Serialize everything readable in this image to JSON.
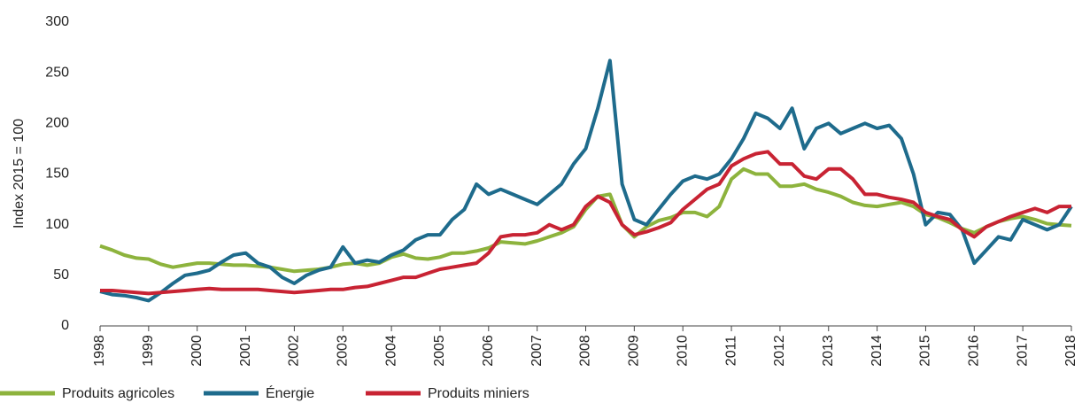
{
  "chart_data": {
    "type": "line",
    "y_label": "Index 2015 = 100",
    "x": [
      1998,
      1998.25,
      1998.5,
      1998.75,
      1999,
      1999.25,
      1999.5,
      1999.75,
      2000,
      2000.25,
      2000.5,
      2000.75,
      2001,
      2001.25,
      2001.5,
      2001.75,
      2002,
      2002.25,
      2002.5,
      2002.75,
      2003,
      2003.25,
      2003.5,
      2003.75,
      2004,
      2004.25,
      2004.5,
      2004.75,
      2005,
      2005.25,
      2005.5,
      2005.75,
      2006,
      2006.25,
      2006.5,
      2006.75,
      2007,
      2007.25,
      2007.5,
      2007.75,
      2008,
      2008.25,
      2008.5,
      2008.75,
      2009,
      2009.25,
      2009.5,
      2009.75,
      2010,
      2010.25,
      2010.5,
      2010.75,
      2011,
      2011.25,
      2011.5,
      2011.75,
      2012,
      2012.25,
      2012.5,
      2012.75,
      2013,
      2013.25,
      2013.5,
      2013.75,
      2014,
      2014.25,
      2014.5,
      2014.75,
      2015,
      2015.25,
      2015.5,
      2015.75,
      2016,
      2016.25,
      2016.5,
      2016.75,
      2017,
      2017.25,
      2017.5,
      2017.75,
      2018
    ],
    "series": [
      {
        "name": "Produits agricoles",
        "color": "#8db33d",
        "values": [
          79,
          75,
          70,
          67,
          66,
          61,
          58,
          60,
          62,
          62,
          61,
          60,
          60,
          59,
          58,
          56,
          54,
          55,
          56,
          58,
          61,
          62,
          60,
          62,
          68,
          71,
          67,
          66,
          68,
          72,
          72,
          74,
          77,
          83,
          82,
          81,
          84,
          88,
          92,
          98,
          115,
          128,
          130,
          100,
          88,
          98,
          104,
          107,
          112,
          112,
          108,
          118,
          145,
          155,
          150,
          150,
          138,
          138,
          140,
          135,
          132,
          128,
          122,
          119,
          118,
          120,
          122,
          118,
          110,
          107,
          102,
          96,
          92,
          98,
          103,
          106,
          108,
          105,
          101,
          100,
          99
        ]
      },
      {
        "name": "Énergie",
        "color": "#1e6b8c",
        "values": [
          34,
          31,
          30,
          28,
          25,
          33,
          42,
          50,
          52,
          55,
          63,
          70,
          72,
          62,
          58,
          48,
          42,
          50,
          55,
          58,
          78,
          62,
          65,
          63,
          70,
          75,
          85,
          90,
          90,
          105,
          115,
          140,
          130,
          135,
          130,
          125,
          120,
          130,
          140,
          160,
          175,
          215,
          262,
          140,
          105,
          100,
          115,
          130,
          143,
          148,
          145,
          150,
          165,
          185,
          210,
          205,
          195,
          215,
          175,
          195,
          200,
          190,
          195,
          200,
          195,
          198,
          185,
          150,
          100,
          112,
          110,
          95,
          62,
          75,
          88,
          85,
          105,
          100,
          95,
          100,
          118
        ]
      },
      {
        "name": "Produits miniers",
        "color": "#c82333",
        "values": [
          35,
          35,
          34,
          33,
          32,
          33,
          34,
          35,
          36,
          37,
          36,
          36,
          36,
          36,
          35,
          34,
          33,
          34,
          35,
          36,
          36,
          38,
          39,
          42,
          45,
          48,
          48,
          52,
          56,
          58,
          60,
          62,
          72,
          88,
          90,
          90,
          92,
          100,
          95,
          100,
          118,
          128,
          122,
          100,
          90,
          93,
          97,
          102,
          115,
          125,
          135,
          140,
          158,
          165,
          170,
          172,
          160,
          160,
          148,
          145,
          155,
          155,
          145,
          130,
          130,
          127,
          125,
          122,
          112,
          108,
          105,
          95,
          88,
          98,
          103,
          108,
          112,
          116,
          112,
          118,
          118
        ]
      }
    ],
    "xlim": [
      1998,
      2018
    ],
    "xticks": [
      1998,
      1999,
      2000,
      2001,
      2002,
      2003,
      2004,
      2005,
      2006,
      2007,
      2008,
      2009,
      2010,
      2011,
      2012,
      2013,
      2014,
      2015,
      2016,
      2017,
      2018
    ],
    "ylim": [
      0,
      300
    ],
    "yticks": [
      0,
      50,
      100,
      150,
      200,
      250,
      300
    ]
  }
}
